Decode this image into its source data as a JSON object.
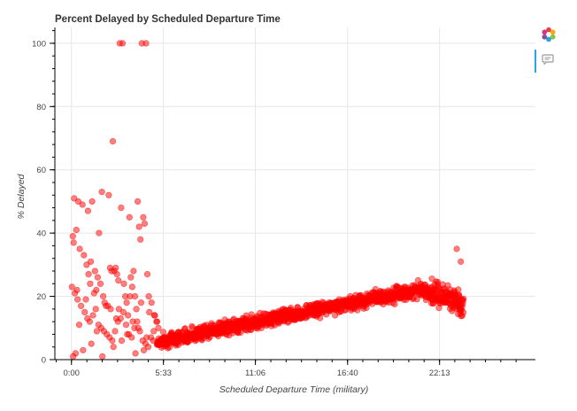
{
  "chart_data": {
    "type": "scatter",
    "title": "Percent Delayed by Scheduled Departure Time",
    "xlabel": "Scheduled Departure Time (military)",
    "ylabel": "% Delayed",
    "xlim": [
      -60,
      1680
    ],
    "ylim": [
      0,
      105
    ],
    "x_ticks": [
      {
        "value": 0,
        "label": "0:00"
      },
      {
        "value": 333,
        "label": "5:33"
      },
      {
        "value": 666,
        "label": "11:06"
      },
      {
        "value": 1000,
        "label": "16:40"
      },
      {
        "value": 1333,
        "label": "22:13"
      }
    ],
    "y_ticks": [
      0,
      20,
      40,
      60,
      80,
      100
    ],
    "grid": true,
    "marker_color": "#ff0000",
    "marker_alpha": 0.5,
    "series": [
      {
        "x": [
          175,
          185,
          255,
          270,
          10,
          25,
          40,
          60,
          75,
          100,
          110,
          135,
          150,
          180,
          210,
          260,
          240,
          5,
          8,
          18,
          30,
          45,
          55,
          62,
          70,
          85,
          90,
          95,
          105,
          115,
          120,
          125,
          140,
          145,
          155,
          160,
          165,
          170,
          190,
          195,
          200,
          205,
          215,
          220,
          225,
          230,
          235,
          245,
          250,
          265,
          275,
          280,
          290,
          300,
          310,
          315,
          2,
          12,
          22,
          35,
          48,
          58,
          66,
          78,
          88,
          98,
          108,
          118,
          128,
          138,
          148,
          158,
          168,
          178,
          188,
          198,
          208,
          218,
          228,
          238,
          248,
          258,
          268,
          278,
          288,
          298,
          308,
          15,
          42,
          72,
          112,
          152,
          182,
          232,
          262,
          20,
          52,
          82,
          132,
          172,
          212,
          252,
          282,
          302,
          6,
          28,
          68,
          92,
          142,
          162,
          202,
          222,
          242,
          272,
          296,
          1395,
          1410
        ],
        "y": [
          100,
          100,
          100,
          100,
          51,
          50,
          49,
          47,
          50,
          40,
          53,
          52,
          69,
          48,
          45,
          45,
          50,
          39,
          37,
          41,
          35,
          33,
          30,
          27,
          31,
          28,
          22,
          26,
          24,
          20,
          18,
          17,
          29,
          28,
          28,
          29,
          27,
          25,
          24,
          20,
          18,
          14,
          26,
          23,
          28,
          20,
          16,
          42,
          38,
          43,
          27,
          20,
          18,
          14,
          12,
          10,
          23,
          21,
          19,
          17,
          15,
          13,
          12,
          14,
          16,
          11,
          10,
          9,
          8,
          7,
          6,
          9,
          12,
          13,
          15,
          11,
          8,
          7,
          10,
          12,
          9,
          6,
          5,
          4,
          7,
          9,
          12,
          2,
          3,
          5,
          1,
          4,
          6,
          2,
          3,
          22,
          19,
          21,
          17,
          16,
          20,
          18,
          15,
          14,
          1,
          11,
          24,
          9,
          16,
          13,
          8,
          12,
          10,
          7,
          6,
          35,
          31
        ],
        "band": {
          "x_start": 310,
          "x_end": 1420,
          "y_start": 5.5,
          "y_peak": 22,
          "x_peak": 1260,
          "y_end": 18
        }
      }
    ]
  }
}
